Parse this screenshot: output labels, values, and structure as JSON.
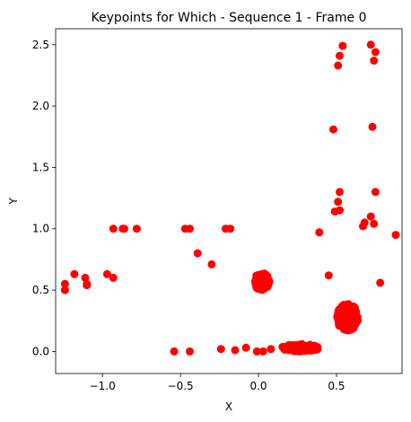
{
  "chart_data": {
    "type": "scatter",
    "title": "Keypoints for Which - Sequence 1 - Frame 0",
    "xlabel": "X",
    "ylabel": "Y",
    "xlim": [
      -1.3,
      0.92
    ],
    "ylim": [
      -0.18,
      2.63
    ],
    "xticks": [
      -1.0,
      -0.5,
      0.0,
      0.5
    ],
    "xtick_labels": [
      "−1.0",
      "−0.5",
      "0.0",
      "0.5"
    ],
    "yticks": [
      0.0,
      0.5,
      1.0,
      1.5,
      2.0,
      2.5
    ],
    "ytick_labels": [
      "0.0",
      "0.5",
      "1.0",
      "1.5",
      "2.0",
      "2.5"
    ],
    "grid": false,
    "color": "#ff0000",
    "points": [
      {
        "x": 0.54,
        "y": 2.49
      },
      {
        "x": 0.72,
        "y": 2.5
      },
      {
        "x": 0.52,
        "y": 2.41
      },
      {
        "x": 0.75,
        "y": 2.44
      },
      {
        "x": 0.51,
        "y": 2.33
      },
      {
        "x": 0.74,
        "y": 2.37
      },
      {
        "x": 0.48,
        "y": 1.81
      },
      {
        "x": 0.73,
        "y": 1.83
      },
      {
        "x": 0.52,
        "y": 1.3
      },
      {
        "x": 0.75,
        "y": 1.3
      },
      {
        "x": 0.51,
        "y": 1.22
      },
      {
        "x": 0.49,
        "y": 1.14
      },
      {
        "x": 0.52,
        "y": 1.15
      },
      {
        "x": 0.72,
        "y": 1.1
      },
      {
        "x": 0.68,
        "y": 1.05
      },
      {
        "x": 0.74,
        "y": 1.04
      },
      {
        "x": 0.67,
        "y": 1.02
      },
      {
        "x": 0.88,
        "y": 0.95
      },
      {
        "x": 0.39,
        "y": 0.97
      },
      {
        "x": 0.45,
        "y": 0.62
      },
      {
        "x": 0.78,
        "y": 0.56
      },
      {
        "x": -0.93,
        "y": 1.0
      },
      {
        "x": -0.87,
        "y": 1.0
      },
      {
        "x": -0.86,
        "y": 1.0
      },
      {
        "x": -0.78,
        "y": 1.0
      },
      {
        "x": -0.47,
        "y": 1.0
      },
      {
        "x": -0.44,
        "y": 1.0
      },
      {
        "x": -0.21,
        "y": 1.0
      },
      {
        "x": -0.18,
        "y": 1.0
      },
      {
        "x": -0.39,
        "y": 0.8
      },
      {
        "x": -0.3,
        "y": 0.71
      },
      {
        "x": -1.24,
        "y": 0.55
      },
      {
        "x": -1.24,
        "y": 0.5
      },
      {
        "x": -1.18,
        "y": 0.63
      },
      {
        "x": -1.11,
        "y": 0.6
      },
      {
        "x": -1.1,
        "y": 0.55
      },
      {
        "x": -1.1,
        "y": 0.54
      },
      {
        "x": -0.97,
        "y": 0.63
      },
      {
        "x": -0.93,
        "y": 0.6
      },
      {
        "x": -0.54,
        "y": 0.0
      },
      {
        "x": -0.44,
        "y": 0.0
      },
      {
        "x": -0.24,
        "y": 0.02
      },
      {
        "x": -0.15,
        "y": 0.01
      },
      {
        "x": -0.08,
        "y": 0.03
      },
      {
        "x": -0.01,
        "y": 0.0
      },
      {
        "x": 0.03,
        "y": 0.0
      },
      {
        "x": 0.08,
        "y": 0.02
      }
    ],
    "clusters": [
      {
        "cx": 0.02,
        "cy": 0.57,
        "rx": 0.05,
        "ry": 0.07,
        "count": 90
      },
      {
        "cx": 0.57,
        "cy": 0.28,
        "rx": 0.07,
        "ry": 0.11,
        "count": 160
      },
      {
        "cx": 0.27,
        "cy": 0.03,
        "rx": 0.12,
        "ry": 0.03,
        "count": 120
      }
    ]
  }
}
